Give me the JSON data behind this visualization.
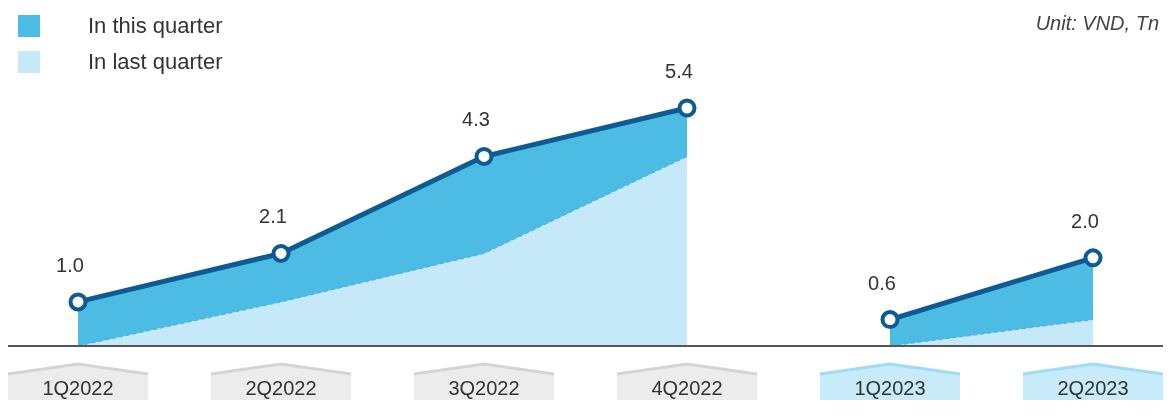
{
  "chart_data": {
    "type": "area",
    "categories": [
      "1Q2022",
      "2Q2022",
      "3Q2022",
      "4Q2022",
      "1Q2023",
      "2Q2023"
    ],
    "series": [
      {
        "name": "In this quarter",
        "color": "#4dbce4",
        "values": [
          1.0,
          2.1,
          4.3,
          5.4,
          null,
          null
        ],
        "marker": "circle",
        "value_labels": [
          "1.0",
          "2.1",
          "4.3",
          "5.4",
          null,
          null
        ]
      },
      {
        "color": "#4dbce4",
        "values": [
          null,
          null,
          null,
          null,
          0.6,
          2.0
        ],
        "marker": "circle",
        "value_labels": [
          null,
          null,
          null,
          null,
          "0.6",
          "2.0"
        ]
      },
      {
        "name": "In last quarter",
        "color": "#c5e9f9",
        "values": [
          0,
          1.0,
          2.1,
          4.3,
          null,
          null
        ],
        "marker": "none",
        "line_style": "dashed"
      },
      {
        "color": "#c5e9f9",
        "values": [
          null,
          null,
          null,
          null,
          0,
          0.6
        ],
        "marker": "none",
        "line_style": "dashed"
      }
    ],
    "annotations": [
      "Unit: VND, Tn"
    ],
    "legend": "top left",
    "grid": false
  }
}
